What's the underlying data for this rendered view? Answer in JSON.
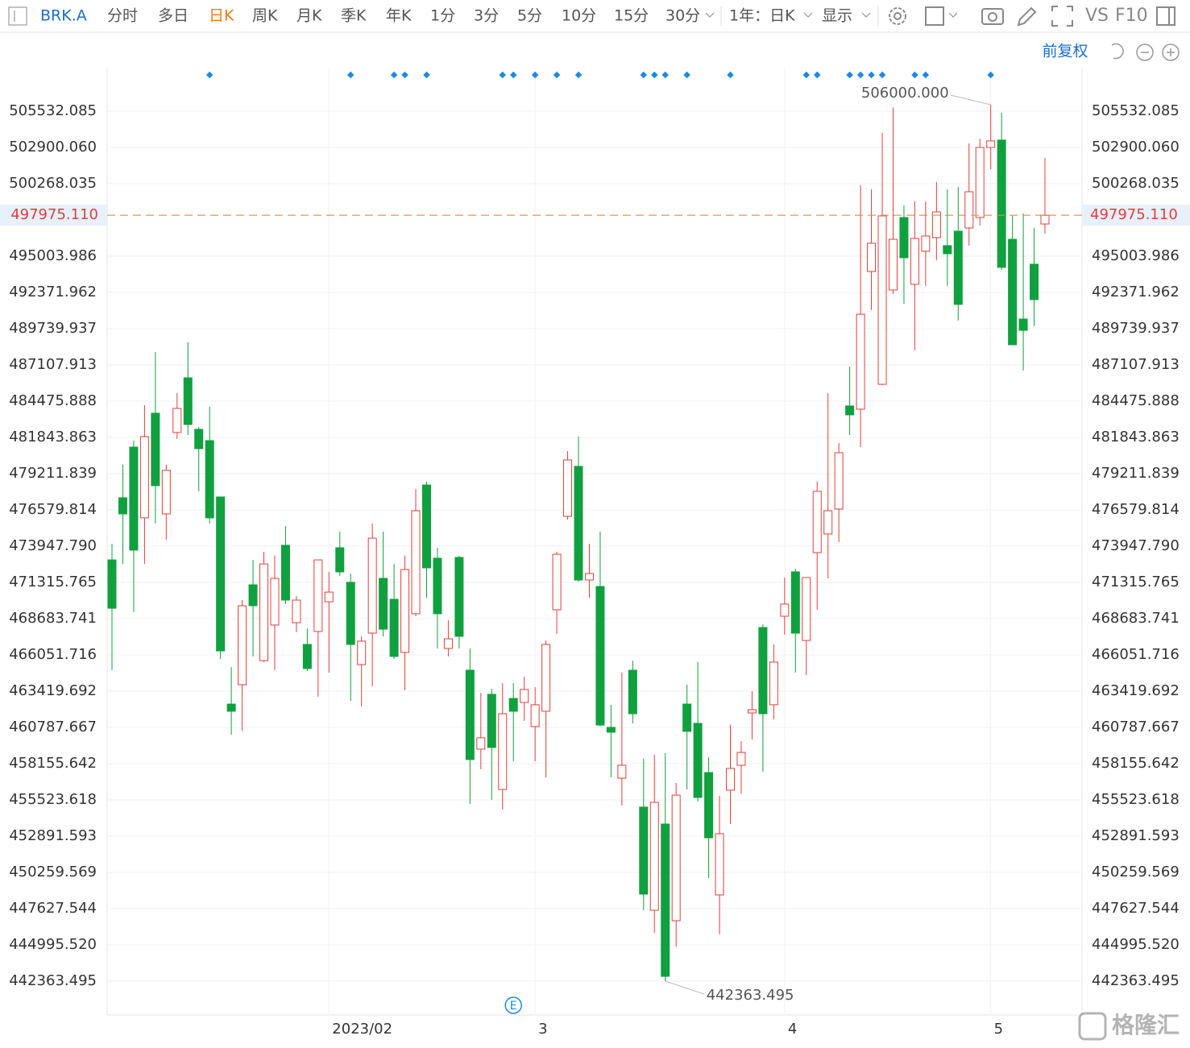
{
  "toolbar": {
    "symbol": "BRK.A",
    "tabs": [
      "分时",
      "多日",
      "日K",
      "周K",
      "月K",
      "季K",
      "年K",
      "1分",
      "3分",
      "5分",
      "10分",
      "15分",
      "30分"
    ],
    "range": "1年：日K",
    "display": "显示",
    "vs": "VS",
    "f10": "F10"
  },
  "adjust": "前复权",
  "watermark": "格隆汇",
  "chart_data": {
    "type": "candlestick",
    "up_color": "#e0403c",
    "down_color": "#11a03f",
    "grid": true,
    "categories": [
      null,
      null,
      null,
      null,
      null,
      null,
      null,
      null,
      null,
      null,
      null,
      null,
      null,
      null,
      null,
      null,
      null,
      null,
      null,
      null,
      "2023/02",
      null,
      null,
      null,
      null,
      null,
      null,
      null,
      null,
      null,
      null,
      null,
      null,
      null,
      null,
      null,
      null,
      null,
      null,
      "3",
      null,
      null,
      null,
      null,
      null,
      null,
      null,
      null,
      null,
      null,
      null,
      null,
      null,
      null,
      null,
      null,
      null,
      null,
      null,
      null,
      null,
      null,
      "4",
      null,
      null,
      null,
      null,
      null,
      null,
      null,
      null,
      null,
      null,
      null,
      null,
      null,
      null,
      null,
      null,
      null,
      null,
      "5",
      null,
      null,
      null,
      null,
      null
    ],
    "open": [
      472950,
      477460,
      481140,
      476000,
      483600,
      476290,
      482200,
      486170,
      482430,
      481610,
      477520,
      462480,
      463890,
      471140,
      465640,
      468220,
      474010,
      468390,
      466810,
      467750,
      469910,
      473830,
      471320,
      465350,
      467630,
      471610,
      470090,
      466230,
      469040,
      478390,
      473070,
      466520,
      473130,
      464940,
      459210,
      463190,
      456280,
      462890,
      462600,
      460850,
      461960,
      469330,
      476110,
      479740,
      471490,
      471020,
      460790,
      457100,
      464940,
      455000,
      447510,
      453770,
      446750,
      462480,
      461080,
      457510,
      448620,
      456230,
      458040,
      461840,
      468040,
      462430,
      468860,
      472080,
      467100,
      473480,
      474830,
      476640,
      484130,
      483890,
      493890,
      485700,
      492550,
      497810,
      492960,
      495360,
      496350,
      495770,
      496820,
      497050,
      497810,
      502900,
      503430,
      496230,
      490440,
      494420,
      497340
    ],
    "high": [
      474120,
      479860,
      481610,
      484180,
      488040,
      479860,
      485060,
      488750,
      482600,
      484070,
      477520,
      465170,
      470030,
      472950,
      473540,
      473250,
      475410,
      470320,
      467980,
      472950,
      472080,
      475000,
      471960,
      467400,
      475590,
      475000,
      472660,
      473250,
      478100,
      478630,
      473830,
      468570,
      473250,
      466520,
      463300,
      463600,
      464000,
      464000,
      464470,
      463710,
      467100,
      473540,
      480850,
      481900,
      474120,
      475000,
      462430,
      464770,
      465640,
      458510,
      458800,
      458920,
      456750,
      463890,
      465530,
      458620,
      455820,
      460960,
      459790,
      463420,
      468270,
      466810,
      471670,
      472310,
      471670,
      478630,
      485060,
      481430,
      486990,
      500150,
      499860,
      503950,
      505800,
      498690,
      498980,
      498980,
      500390,
      499860,
      500030,
      503190,
      503540,
      506000,
      505420,
      497930,
      498100,
      497050,
      502140
    ],
    "low": [
      464940,
      472660,
      469150,
      472660,
      475590,
      474420,
      481730,
      482020,
      477930,
      475590,
      465760,
      460260,
      460550,
      465940,
      465530,
      464940,
      469740,
      467690,
      464880,
      463010,
      464770,
      471780,
      462720,
      462310,
      463770,
      467400,
      465760,
      463480,
      468860,
      470200,
      466520,
      465940,
      466520,
      455230,
      457750,
      455520,
      454820,
      458330,
      461260,
      458330,
      457160,
      467570,
      475880,
      471370,
      470200,
      460850,
      457160,
      455110,
      461080,
      447510,
      445870,
      442363.495,
      444880,
      456280,
      455410,
      449850,
      445760,
      453770,
      455990,
      459910,
      457570,
      461370,
      467510,
      464770,
      464590,
      469330,
      471610,
      474240,
      482020,
      481140,
      491090,
      485650,
      492260,
      491550,
      488160,
      492840,
      494710,
      492840,
      490330,
      495770,
      497230,
      501320,
      494010,
      488570,
      486700,
      489920,
      496640
    ],
    "close": [
      469440,
      476290,
      473660,
      481900,
      478340,
      479450,
      483950,
      482780,
      481030,
      476000,
      466340,
      461960,
      469620,
      469620,
      472660,
      471610,
      470030,
      470030,
      465060,
      472950,
      470610,
      472080,
      466810,
      467050,
      474530,
      467920,
      465940,
      472250,
      476520,
      472370,
      469040,
      467220,
      467400,
      458450,
      460030,
      459330,
      461780,
      461960,
      463540,
      462430,
      466810,
      473360,
      480210,
      471490,
      471960,
      460960,
      460440,
      458040,
      461780,
      448680,
      455350,
      442710,
      455870,
      460500,
      455700,
      452770,
      453070,
      457810,
      458970,
      462070,
      461780,
      465530,
      469740,
      467630,
      471670,
      477930,
      476520,
      480730,
      483480,
      490790,
      495940,
      497930,
      496230,
      494890,
      496290,
      496470,
      498220,
      495180,
      491500,
      499680,
      502900,
      503370,
      494190,
      488570,
      489620,
      491850,
      497975.11
    ],
    "ylim": [
      439906,
      508632
    ],
    "yticks": [
      505532.085,
      {
        "value": 502900.06,
        "label": "502900.060"
      },
      500268.035,
      495003.986,
      492371.962,
      489739.937,
      487107.913,
      484475.888,
      481843.863,
      479211.839,
      476579.814,
      {
        "value": 473947.79,
        "label": "473947.790"
      },
      471315.765,
      468683.741,
      466051.716,
      463419.692,
      460787.667,
      458155.642,
      455523.618,
      452891.593,
      450259.569,
      447627.544,
      {
        "value": 444995.52,
        "label": "444995.520"
      },
      442363.495
    ],
    "current_price": {
      "value": 497975.11,
      "label": "497975.110"
    },
    "high_label": "506000.000",
    "low_label": "442363.495",
    "event_markers": [
      9,
      22,
      26,
      27,
      29,
      36,
      37,
      39,
      41,
      43,
      49,
      50,
      51,
      53,
      57,
      64,
      65,
      68,
      69,
      70,
      71,
      74,
      75,
      81
    ],
    "earnings_marker": {
      "index": 37,
      "label": "E"
    }
  }
}
